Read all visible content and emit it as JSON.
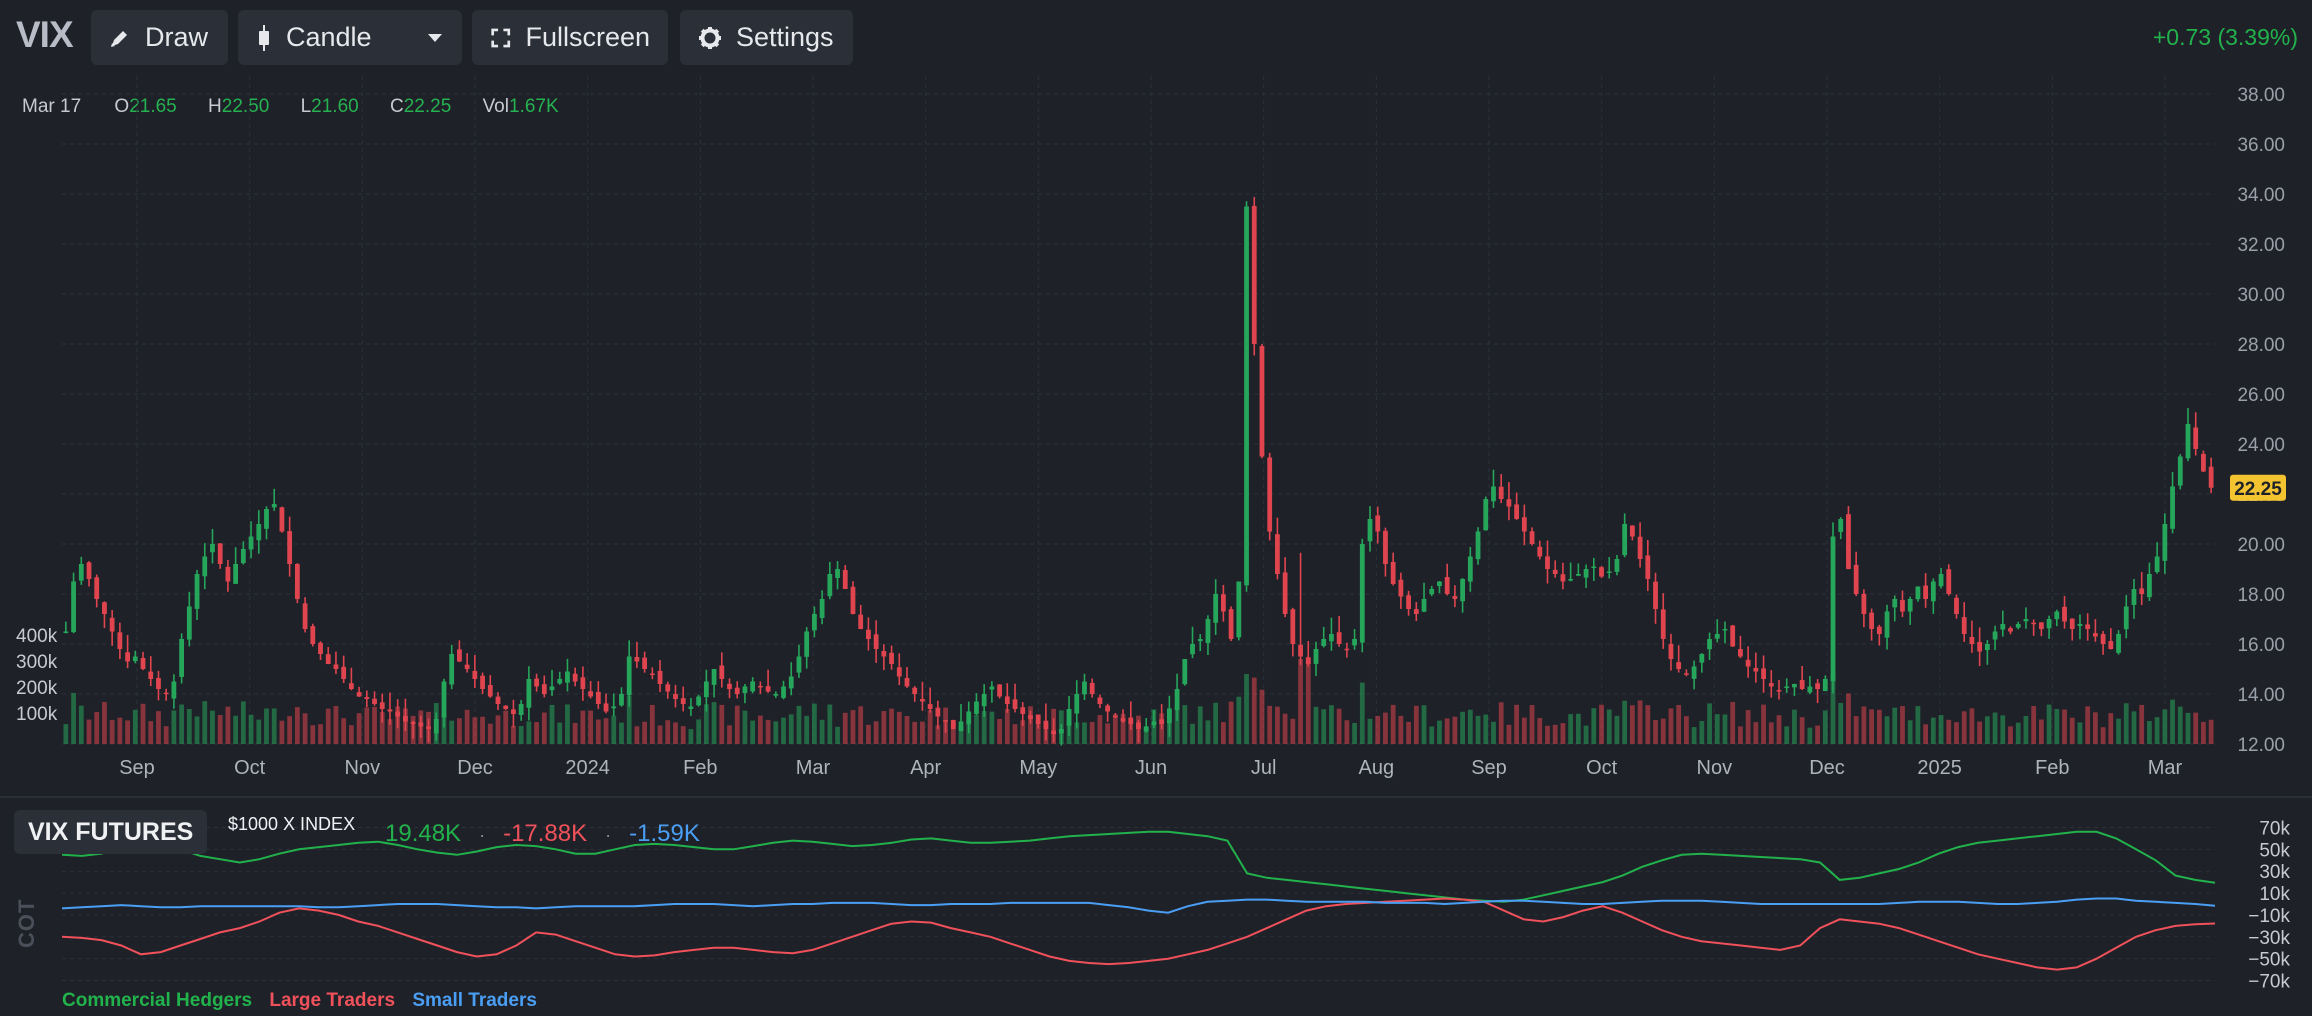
{
  "toolbar": {
    "symbol": "VIX",
    "draw_label": "Draw",
    "chart_type_label": "Candle",
    "fullscreen_label": "Fullscreen",
    "settings_label": "Settings",
    "change": "+0.73 (3.39%)"
  },
  "ohlc": {
    "date": "Mar 17",
    "o_label": "O",
    "o": "21.65",
    "h_label": "H",
    "h": "22.50",
    "l_label": "L",
    "l": "21.60",
    "c_label": "C",
    "c": "22.25",
    "vol_label": "Vol",
    "vol": "1.67K"
  },
  "colors": {
    "up": "#26a65b",
    "down": "#e0454f",
    "commercial": "#22b24c",
    "large": "#f0515a",
    "small": "#4a9ff5",
    "last_price_bg": "#f4c430"
  },
  "chart_data": [
    {
      "type": "line",
      "title": "",
      "ylim": [
        12,
        38
      ],
      "y_ticks": [
        "38.00",
        "36.00",
        "34.00",
        "32.00",
        "30.00",
        "28.00",
        "26.00",
        "24.00",
        "22.00",
        "20.00",
        "18.00",
        "16.00",
        "14.00",
        "12.00"
      ],
      "x_ticks": [
        "Sep",
        "Oct",
        "Nov",
        "Dec",
        "2024",
        "Feb",
        "Mar",
        "Apr",
        "May",
        "Jun",
        "Jul",
        "Aug",
        "Sep",
        "Oct",
        "Nov",
        "Dec",
        "2025",
        "Feb",
        "Mar"
      ],
      "volume_ticks": [
        "400k",
        "300k",
        "200k",
        "100k"
      ],
      "last_price": "22.25",
      "series": [
        {
          "values": [
            16.5,
            18.5,
            19.2,
            18.6,
            17.8,
            17.2,
            16.5,
            15.8,
            15.3,
            15.5,
            15.0,
            14.6,
            14.2,
            14.0,
            14.5,
            16.2,
            17.5,
            18.8,
            19.5,
            20.0,
            19.2,
            18.5,
            19.2,
            19.8,
            20.3,
            20.8,
            21.4,
            21.6,
            20.5,
            19.2,
            17.8,
            16.6,
            16.0,
            15.6,
            15.2,
            15.0,
            14.6,
            14.2,
            13.9,
            13.8,
            13.6,
            13.4,
            13.3,
            13.1,
            12.9,
            12.8,
            12.7,
            12.6,
            13.0,
            14.5,
            15.6,
            15.3,
            15.0,
            14.6,
            14.2,
            13.9,
            13.6,
            13.4,
            13.2,
            13.6,
            14.6,
            14.3,
            14.0,
            14.3,
            14.6,
            14.9,
            14.5,
            14.2,
            13.9,
            13.6,
            13.3,
            13.5,
            14.0,
            15.5,
            15.3,
            15.0,
            14.8,
            14.4,
            14.1,
            13.8,
            13.6,
            13.5,
            13.9,
            14.5,
            15.0,
            14.6,
            14.2,
            14.0,
            14.3,
            14.5,
            14.3,
            14.1,
            14.0,
            14.3,
            14.7,
            15.5,
            16.5,
            17.2,
            17.8,
            18.8,
            19.0,
            18.2,
            17.2,
            16.6,
            16.2,
            15.8,
            15.5,
            15.2,
            14.7,
            14.3,
            14.0,
            13.7,
            13.4,
            13.1,
            12.9,
            12.6,
            12.9,
            13.3,
            13.7,
            14.0,
            14.3,
            13.9,
            13.6,
            13.4,
            13.2,
            13.0,
            12.8,
            12.6,
            12.4,
            12.6,
            13.4,
            14.0,
            14.5,
            14.0,
            13.6,
            13.3,
            13.1,
            12.9,
            12.8,
            12.6,
            12.7,
            12.9,
            12.8,
            13.4,
            14.2,
            15.4,
            16.0,
            16.2,
            17.0,
            18.0,
            17.3,
            16.2,
            18.5,
            33.5,
            28.0,
            23.5,
            20.5,
            18.8,
            17.2,
            16.0,
            15.5,
            15.2,
            15.8,
            16.2,
            16.4,
            16.0,
            15.8,
            16.2,
            20.0,
            21.0,
            20.5,
            19.2,
            18.4,
            17.9,
            17.4,
            17.2,
            17.8,
            18.2,
            18.5,
            18.0,
            17.8,
            18.6,
            19.5,
            20.5,
            21.8,
            22.3,
            21.8,
            21.5,
            21.0,
            20.5,
            20.0,
            19.5,
            19.0,
            18.8,
            18.5,
            18.6,
            18.8,
            19.0,
            19.1,
            18.7,
            18.9,
            19.4,
            20.8,
            20.3,
            19.4,
            18.6,
            17.4,
            16.2,
            15.4,
            15.0,
            14.8,
            15.1,
            15.6,
            16.2,
            16.4,
            16.6,
            15.9,
            15.5,
            15.1,
            14.9,
            14.6,
            14.3,
            14.1,
            14.3,
            14.4,
            14.2,
            14.3,
            14.2,
            14.6,
            20.3,
            21.0,
            19.0,
            18.0,
            17.2,
            16.6,
            16.4,
            17.3,
            17.8,
            17.3,
            17.8,
            18.3,
            17.8,
            18.5,
            18.8,
            18.0,
            17.2,
            16.4,
            16.0,
            15.7,
            16.0,
            16.5,
            16.8,
            16.5,
            16.8,
            17.0,
            16.8,
            16.6,
            17.0,
            17.3,
            16.9,
            16.6,
            16.8,
            16.6,
            16.3,
            16.0,
            15.8,
            16.4,
            17.5,
            18.2,
            18.0,
            18.8,
            19.5,
            20.8,
            22.3,
            23.5,
            24.8,
            23.8,
            22.9,
            22.25
          ]
        }
      ]
    },
    {
      "type": "line",
      "title": "VIX FUTURES",
      "subtitle": "$1000 X INDEX",
      "ylabel": "COT",
      "ylim": [
        -75,
        75
      ],
      "y_ticks": [
        "70k",
        "50k",
        "30k",
        "10k",
        "−10k",
        "−30k",
        "−50k",
        "−70k"
      ],
      "current_values": [
        "19.48K",
        "-17.88K",
        "-1.59K"
      ],
      "series": [
        {
          "name": "Commercial Hedgers",
          "values": [
            45,
            44,
            46,
            52,
            60,
            57,
            50,
            44,
            41,
            38,
            41,
            46,
            50,
            52,
            54,
            56,
            57,
            54,
            50,
            47,
            45,
            48,
            52,
            54,
            53,
            50,
            46,
            46,
            50,
            54,
            55,
            54,
            52,
            50,
            50,
            53,
            56,
            58,
            57,
            55,
            53,
            54,
            56,
            59,
            60,
            58,
            56,
            56,
            57,
            58,
            60,
            62,
            63,
            64,
            65,
            66,
            66,
            64,
            62,
            58,
            28,
            24,
            22,
            20,
            18,
            16,
            14,
            12,
            10,
            8,
            6,
            4,
            3,
            2,
            4,
            8,
            12,
            16,
            20,
            26,
            34,
            40,
            45,
            46,
            45,
            44,
            43,
            42,
            41,
            38,
            22,
            24,
            28,
            32,
            38,
            46,
            52,
            56,
            58,
            60,
            62,
            64,
            66,
            66,
            60,
            50,
            40,
            26,
            22,
            19.5
          ]
        },
        {
          "name": "Large Traders",
          "values": [
            -30,
            -31,
            -33,
            -38,
            -46,
            -44,
            -38,
            -32,
            -26,
            -22,
            -16,
            -8,
            -4,
            -6,
            -10,
            -16,
            -20,
            -26,
            -32,
            -38,
            -44,
            -48,
            -46,
            -38,
            -26,
            -28,
            -34,
            -40,
            -46,
            -48,
            -47,
            -44,
            -42,
            -40,
            -40,
            -42,
            -44,
            -45,
            -42,
            -36,
            -30,
            -24,
            -18,
            -16,
            -17,
            -22,
            -26,
            -30,
            -36,
            -42,
            -48,
            -52,
            -54,
            -55,
            -54,
            -52,
            -50,
            -46,
            -42,
            -36,
            -30,
            -22,
            -14,
            -6,
            -2,
            0,
            1,
            2,
            3,
            4,
            5,
            4,
            2,
            -6,
            -14,
            -16,
            -12,
            -6,
            -2,
            -8,
            -16,
            -24,
            -30,
            -34,
            -36,
            -38,
            -40,
            -42,
            -38,
            -22,
            -14,
            -16,
            -18,
            -22,
            -28,
            -34,
            -40,
            -46,
            -50,
            -54,
            -58,
            -60,
            -58,
            -50,
            -40,
            -30,
            -24,
            -20,
            -18.5,
            -17.88
          ]
        },
        {
          "name": "Small Traders",
          "values": [
            -4,
            -3,
            -2,
            -1,
            -2,
            -3,
            -3,
            -2,
            -2,
            -2,
            -2,
            -2,
            -2,
            -3,
            -3,
            -2,
            -1,
            0,
            0,
            0,
            -1,
            -2,
            -3,
            -3,
            -4,
            -3,
            -2,
            -2,
            -2,
            -2,
            -1,
            0,
            0,
            0,
            -1,
            -2,
            -1,
            0,
            0,
            1,
            1,
            1,
            0,
            -1,
            -1,
            0,
            0,
            0,
            1,
            1,
            1,
            1,
            1,
            -1,
            -3,
            -6,
            -8,
            -2,
            2,
            3,
            4,
            4,
            3,
            2,
            2,
            2,
            2,
            1,
            1,
            1,
            0,
            1,
            2,
            3,
            3,
            2,
            1,
            0,
            0,
            1,
            2,
            3,
            3,
            3,
            2,
            1,
            0,
            0,
            0,
            0,
            0,
            0,
            0,
            1,
            2,
            2,
            2,
            1,
            0,
            0,
            1,
            2,
            4,
            5,
            5,
            3,
            2,
            1,
            0,
            -1.59
          ]
        }
      ]
    }
  ]
}
